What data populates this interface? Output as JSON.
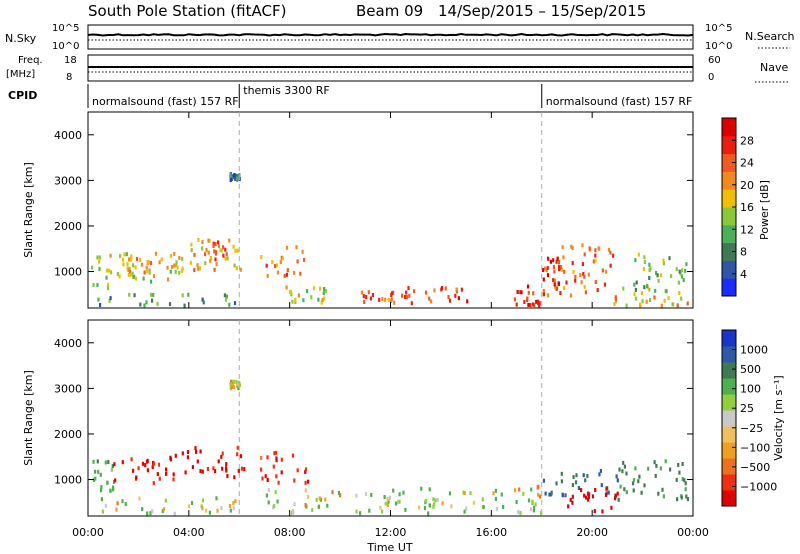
{
  "header": {
    "station": "South Pole Station (fitACF)",
    "beam": "Beam 09",
    "date_range": "14/Sep/2015 – 15/Sep/2015"
  },
  "params": {
    "nsky_label": "N.Sky",
    "nsearch_label": "N.Search",
    "freq_label_1": "Freq.",
    "freq_label_2": "[MHz]",
    "nave_label": "Nave",
    "cpid_label": "CPID",
    "left_ticks_top": [
      "10^5",
      "10^0"
    ],
    "right_ticks_top": [
      "10^5",
      "10^0"
    ],
    "left_ticks_freq": [
      "18",
      "8"
    ],
    "right_ticks_nave": [
      "60",
      "0"
    ]
  },
  "cpid_segments": [
    {
      "label": "normalsound (fast) 157 RF",
      "start_hour": 0
    },
    {
      "label": "themis 3300 RF",
      "start_hour": 6
    },
    {
      "label": "normalsound (fast) 157 RF",
      "start_hour": 18
    }
  ],
  "axes": {
    "ylabel": "Slant Range [km]",
    "xlabel": "Time UT",
    "y_ticks": [
      "1000",
      "2000",
      "3000",
      "4000"
    ],
    "x_ticks": [
      "00:00",
      "04:00",
      "08:00",
      "12:00",
      "16:00",
      "20:00",
      "00:00"
    ]
  },
  "colorbars": {
    "power": {
      "label": "Power [dB]",
      "ticks": [
        "4",
        "8",
        "12",
        "16",
        "20",
        "24",
        "28"
      ],
      "colors": [
        "#1c2bff",
        "#2e55a8",
        "#3f7a55",
        "#4caf5a",
        "#8ac83a",
        "#f0c000",
        "#f08a20",
        "#f05a20",
        "#e82010",
        "#dd0000"
      ]
    },
    "velocity": {
      "label": "Velocity [m s⁻¹]",
      "ticks": [
        "1000",
        "500",
        "100",
        "25",
        "−25",
        "−100",
        "−500",
        "−1000"
      ],
      "colors": [
        "#1a36c8",
        "#2c5aa8",
        "#3f7a55",
        "#4caf50",
        "#90d040",
        "#c8c8c8",
        "#f0c060",
        "#f0a020",
        "#f07020",
        "#ee3010",
        "#e00000"
      ]
    }
  },
  "chart_data": [
    {
      "type": "heatmap",
      "title": "",
      "xlabel": "Time UT",
      "ylabel": "Slant Range [km]",
      "xlim": [
        0,
        24
      ],
      "ylim": [
        200,
        4500
      ],
      "colorbar": "Power [dB]",
      "regions": [
        {
          "t": [
            0.1,
            2.5
          ],
          "r": [
            600,
            1400
          ],
          "v": 14
        },
        {
          "t": [
            1.5,
            2.5
          ],
          "r": [
            900,
            1300
          ],
          "v": 18
        },
        {
          "t": [
            2.5,
            4.0
          ],
          "r": [
            800,
            1400
          ],
          "v": 16
        },
        {
          "t": [
            4.0,
            6.2
          ],
          "r": [
            1000,
            1700
          ],
          "v": 18
        },
        {
          "t": [
            4.5,
            5.6
          ],
          "r": [
            1200,
            1700
          ],
          "v": 22
        },
        {
          "t": [
            6.8,
            8.6
          ],
          "r": [
            900,
            1600
          ],
          "v": 20
        },
        {
          "t": [
            7.8,
            9.5
          ],
          "r": [
            250,
            700
          ],
          "v": 14
        },
        {
          "t": [
            10.8,
            12.6
          ],
          "r": [
            250,
            550
          ],
          "v": 22
        },
        {
          "t": [
            12.6,
            15.2
          ],
          "r": [
            250,
            650
          ],
          "v": 24
        },
        {
          "t": [
            16.8,
            18.0
          ],
          "r": [
            250,
            750
          ],
          "v": 26
        },
        {
          "t": [
            18.0,
            20.8
          ],
          "r": [
            450,
            1600
          ],
          "v": 22
        },
        {
          "t": [
            18.0,
            19.0
          ],
          "r": [
            700,
            1300
          ],
          "v": 26
        },
        {
          "t": [
            21.0,
            23.8
          ],
          "r": [
            500,
            1400
          ],
          "v": 12
        },
        {
          "t": [
            0.1,
            6.0
          ],
          "r": [
            250,
            500
          ],
          "v": 10
        },
        {
          "t": [
            5.6,
            6.0
          ],
          "r": [
            3000,
            3150
          ],
          "v": 6
        },
        {
          "t": [
            20.8,
            23.8
          ],
          "r": [
            250,
            450
          ],
          "v": 18
        }
      ]
    },
    {
      "type": "heatmap",
      "title": "",
      "xlabel": "Time UT",
      "ylabel": "Slant Range [km]",
      "xlim": [
        0,
        24
      ],
      "ylim": [
        200,
        4500
      ],
      "colorbar": "Velocity [m s⁻¹]",
      "regions": [
        {
          "t": [
            0.1,
            1.0
          ],
          "r": [
            700,
            1400
          ],
          "v": 200
        },
        {
          "t": [
            1.0,
            3.0
          ],
          "r": [
            900,
            1500
          ],
          "v": -300
        },
        {
          "t": [
            3.0,
            6.2
          ],
          "r": [
            1000,
            1700
          ],
          "v": -300
        },
        {
          "t": [
            6.8,
            8.8
          ],
          "r": [
            900,
            1600
          ],
          "v": -200
        },
        {
          "t": [
            0.5,
            6.0
          ],
          "r": [
            250,
            600
          ],
          "v": 60
        },
        {
          "t": [
            7.0,
            10.0
          ],
          "r": [
            250,
            800
          ],
          "v": 40
        },
        {
          "t": [
            10.5,
            16.5
          ],
          "r": [
            250,
            800
          ],
          "v": 80
        },
        {
          "t": [
            16.8,
            18.0
          ],
          "r": [
            250,
            850
          ],
          "v": 50
        },
        {
          "t": [
            18.0,
            21.0
          ],
          "r": [
            600,
            1200
          ],
          "v": 500
        },
        {
          "t": [
            19.0,
            21.0
          ],
          "r": [
            300,
            800
          ],
          "v": -600
        },
        {
          "t": [
            21.0,
            23.8
          ],
          "r": [
            500,
            1400
          ],
          "v": 300
        },
        {
          "t": [
            5.6,
            6.0
          ],
          "r": [
            3000,
            3150
          ],
          "v": 10
        }
      ]
    }
  ]
}
